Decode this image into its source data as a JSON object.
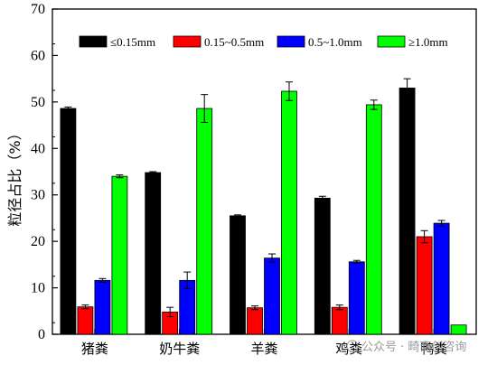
{
  "chart_data": {
    "type": "bar",
    "title": "",
    "xlabel": "",
    "ylabel": "粒径占比（%）",
    "ylim": [
      0,
      70
    ],
    "yticks": [
      0,
      10,
      20,
      30,
      40,
      50,
      60,
      70
    ],
    "categories": [
      "猪粪",
      "奶牛粪",
      "羊粪",
      "鸡粪",
      "鸭粪"
    ],
    "series": [
      {
        "name": "≤0.15mm",
        "color": "#000000",
        "values": [
          48.6,
          34.8,
          25.5,
          29.3,
          53.0
        ],
        "errors": [
          0.3,
          0.2,
          0.2,
          0.4,
          2.0
        ]
      },
      {
        "name": "0.15~0.5mm",
        "color": "#ff0000",
        "values": [
          5.9,
          4.8,
          5.7,
          5.8,
          21.0
        ],
        "errors": [
          0.4,
          1.0,
          0.4,
          0.5,
          1.3
        ]
      },
      {
        "name": "0.5~1.0mm",
        "color": "#0000ff",
        "values": [
          11.6,
          11.6,
          16.4,
          15.6,
          23.9
        ],
        "errors": [
          0.4,
          1.8,
          0.9,
          0.3,
          0.6
        ]
      },
      {
        "name": "≥1.0mm",
        "color": "#00ff00",
        "values": [
          34.0,
          48.6,
          52.3,
          49.4,
          2.0
        ],
        "errors": [
          0.3,
          3.0,
          2.0,
          1.0,
          0
        ]
      }
    ],
    "legend_position": "top",
    "grid": false
  },
  "watermark": "公众号 · 畸商创咨询"
}
